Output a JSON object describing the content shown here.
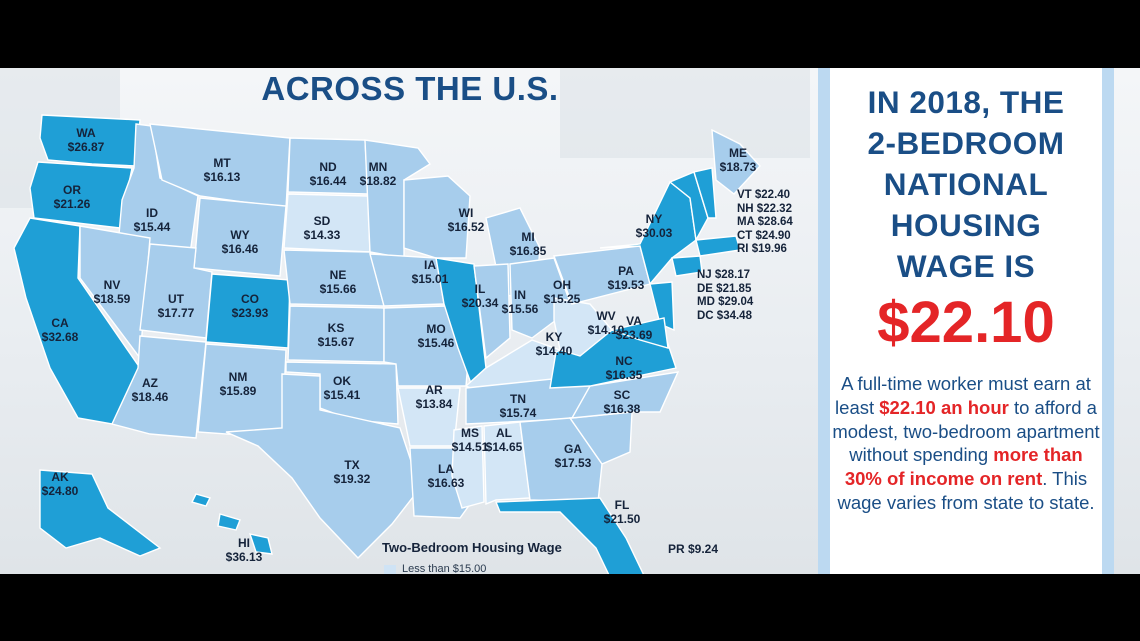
{
  "map_title": "ACROSS THE U.S.",
  "colors": {
    "dark": "#1f9fd6",
    "mid": "#a7cdec",
    "light": "#d3e6f6",
    "border": "#ffffff",
    "headline_blue": "#1a4e86",
    "accent_red": "#e42527"
  },
  "states": [
    {
      "code": "WA",
      "wage": "$26.87",
      "tier": "dark"
    },
    {
      "code": "OR",
      "wage": "$21.26",
      "tier": "dark"
    },
    {
      "code": "CA",
      "wage": "$32.68",
      "tier": "dark"
    },
    {
      "code": "ID",
      "wage": "$15.44",
      "tier": "mid"
    },
    {
      "code": "NV",
      "wage": "$18.59",
      "tier": "mid"
    },
    {
      "code": "MT",
      "wage": "$16.13",
      "tier": "mid"
    },
    {
      "code": "WY",
      "wage": "$16.46",
      "tier": "mid"
    },
    {
      "code": "UT",
      "wage": "$17.77",
      "tier": "mid"
    },
    {
      "code": "AZ",
      "wage": "$18.46",
      "tier": "mid"
    },
    {
      "code": "CO",
      "wage": "$23.93",
      "tier": "dark"
    },
    {
      "code": "NM",
      "wage": "$15.89",
      "tier": "mid"
    },
    {
      "code": "ND",
      "wage": "$16.44",
      "tier": "mid"
    },
    {
      "code": "SD",
      "wage": "$14.33",
      "tier": "light"
    },
    {
      "code": "NE",
      "wage": "$15.66",
      "tier": "mid"
    },
    {
      "code": "KS",
      "wage": "$15.67",
      "tier": "mid"
    },
    {
      "code": "OK",
      "wage": "$15.41",
      "tier": "mid"
    },
    {
      "code": "TX",
      "wage": "$19.32",
      "tier": "mid"
    },
    {
      "code": "MN",
      "wage": "$18.82",
      "tier": "mid"
    },
    {
      "code": "IA",
      "wage": "$15.01",
      "tier": "mid"
    },
    {
      "code": "MO",
      "wage": "$15.46",
      "tier": "mid"
    },
    {
      "code": "AR",
      "wage": "$13.84",
      "tier": "light"
    },
    {
      "code": "LA",
      "wage": "$16.63",
      "tier": "mid"
    },
    {
      "code": "WI",
      "wage": "$16.52",
      "tier": "mid"
    },
    {
      "code": "IL",
      "wage": "$20.34",
      "tier": "dark"
    },
    {
      "code": "MI",
      "wage": "$16.85",
      "tier": "mid"
    },
    {
      "code": "IN",
      "wage": "$15.56",
      "tier": "mid"
    },
    {
      "code": "OH",
      "wage": "$15.25",
      "tier": "mid"
    },
    {
      "code": "KY",
      "wage": "$14.40",
      "tier": "light"
    },
    {
      "code": "TN",
      "wage": "$15.74",
      "tier": "mid"
    },
    {
      "code": "MS",
      "wage": "$14.51",
      "tier": "light"
    },
    {
      "code": "AL",
      "wage": "$14.65",
      "tier": "light"
    },
    {
      "code": "GA",
      "wage": "$17.53",
      "tier": "mid"
    },
    {
      "code": "FL",
      "wage": "$21.50",
      "tier": "dark"
    },
    {
      "code": "SC",
      "wage": "$16.38",
      "tier": "mid"
    },
    {
      "code": "NC",
      "wage": "$16.35",
      "tier": "mid"
    },
    {
      "code": "VA",
      "wage": "$23.69",
      "tier": "dark"
    },
    {
      "code": "WV",
      "wage": "$14.10",
      "tier": "light"
    },
    {
      "code": "PA",
      "wage": "$19.53",
      "tier": "mid"
    },
    {
      "code": "NY",
      "wage": "$30.03",
      "tier": "dark"
    },
    {
      "code": "ME",
      "wage": "$18.73",
      "tier": "mid"
    },
    {
      "code": "AK",
      "wage": "$24.80",
      "tier": "dark"
    },
    {
      "code": "HI",
      "wage": "$36.13",
      "tier": "dark"
    }
  ],
  "northeast_list": [
    "VT $22.40",
    "NH $22.32",
    "MA $28.64",
    "CT $24.90",
    "RI $19.96"
  ],
  "midatlantic_list": [
    "NJ $28.17",
    "DE $21.85",
    "MD $29.04",
    "DC $34.48"
  ],
  "pr": "PR $9.24",
  "legend": {
    "title": "Two-Bedroom Housing Wage",
    "first_item": "Less than $15.00"
  },
  "panel": {
    "headline_lines": [
      "IN 2018, THE",
      "2-BEDROOM",
      "NATIONAL",
      "HOUSING",
      "WAGE IS"
    ],
    "big_wage": "$22.10",
    "body_parts": [
      {
        "text": "A full-time worker must earn at least ",
        "red": false
      },
      {
        "text": "$22.10 an hour",
        "red": true
      },
      {
        "text": " to afford a modest, two-bedroom apartment without spending ",
        "red": false
      },
      {
        "text": "more than 30% of income on rent",
        "red": true
      },
      {
        "text": ". This wage varies from state to state.",
        "red": false
      }
    ]
  }
}
